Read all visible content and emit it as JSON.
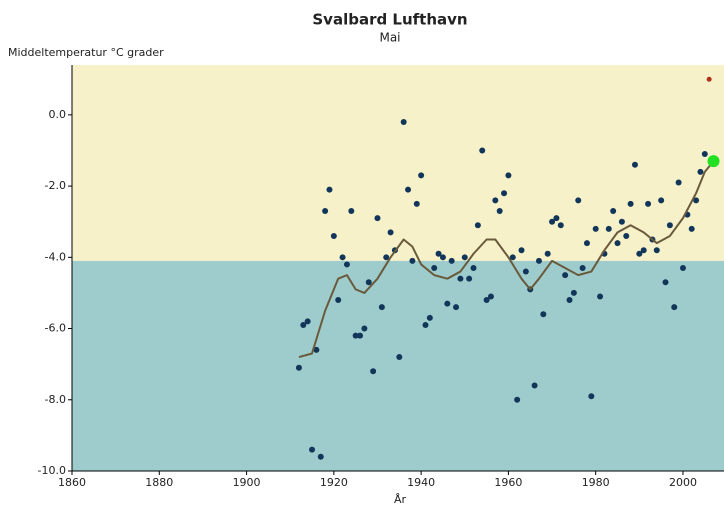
{
  "chart_data": {
    "type": "scatter",
    "title": "Svalbard Lufthavn",
    "subtitle": "Mai",
    "y_label": "Middeltemperatur °C grader",
    "x_label": "År",
    "xlim": [
      1860,
      2009.4
    ],
    "xticks": [
      1860,
      1880,
      1900,
      1920,
      1940,
      1960,
      1980,
      2000
    ],
    "ylim": [
      -10,
      1.4
    ],
    "yticks": [
      {
        "value": 0,
        "label": "0.0"
      },
      {
        "value": -2,
        "label": "-2.0"
      },
      {
        "value": -4,
        "label": "-4.0"
      },
      {
        "value": -6,
        "label": "-6.0"
      },
      {
        "value": -8,
        "label": "-8.0"
      },
      {
        "value": -10,
        "label": "-10.0"
      }
    ],
    "band_threshold": -4.1,
    "band_colors": [
      "#f6f1c9",
      "#9ecccc"
    ],
    "series": [
      {
        "type": "scatter",
        "color": "#12365a",
        "x": [
          1912,
          1913,
          1914,
          1915,
          1916,
          1917,
          1918,
          1919,
          1920,
          1921,
          1922,
          1923,
          1924,
          1925,
          1926,
          1927,
          1928,
          1929,
          1930,
          1931,
          1932,
          1933,
          1934,
          1935,
          1936,
          1937,
          1938,
          1939,
          1940,
          1941,
          1942,
          1943,
          1944,
          1945,
          1946,
          1947,
          1948,
          1949,
          1950,
          1951,
          1952,
          1953,
          1954,
          1955,
          1956,
          1957,
          1958,
          1959,
          1960,
          1961,
          1962,
          1963,
          1964,
          1965,
          1966,
          1967,
          1968,
          1969,
          1970,
          1971,
          1972,
          1973,
          1974,
          1975,
          1976,
          1977,
          1978,
          1979,
          1980,
          1981,
          1982,
          1983,
          1984,
          1985,
          1986,
          1987,
          1988,
          1989,
          1990,
          1991,
          1992,
          1993,
          1994,
          1995,
          1996,
          1997,
          1998,
          1999,
          2000,
          2001,
          2002,
          2003,
          2004,
          2005
        ],
        "values": [
          -7.1,
          -5.9,
          -5.8,
          -9.4,
          -6.6,
          -9.6,
          -2.7,
          -2.1,
          -3.4,
          -5.2,
          -4.0,
          -4.2,
          -2.7,
          -6.2,
          -6.2,
          -6.0,
          -4.7,
          -7.2,
          -2.9,
          -5.4,
          -4.0,
          -3.3,
          -3.8,
          -6.8,
          -0.2,
          -2.1,
          -4.1,
          -2.5,
          -1.7,
          -5.9,
          -5.7,
          -4.3,
          -3.9,
          -4.0,
          -5.3,
          -4.1,
          -5.4,
          -4.6,
          -4.0,
          -4.6,
          -4.3,
          -3.1,
          -1.0,
          -5.2,
          -5.1,
          -2.4,
          -2.7,
          -2.2,
          -1.7,
          -4.0,
          -8.0,
          -3.8,
          -4.4,
          -4.9,
          -7.6,
          -4.1,
          -5.6,
          -3.9,
          -3.0,
          -2.9,
          -3.1,
          -4.5,
          -5.2,
          -5.0,
          -2.4,
          -4.3,
          -3.6,
          -7.9,
          -3.2,
          -5.1,
          -3.9,
          -3.2,
          -2.7,
          -3.6,
          -3.0,
          -3.4,
          -2.5,
          -1.4,
          -3.9,
          -3.8,
          -2.5,
          -3.5,
          -3.8,
          -2.4,
          -4.7,
          -3.1,
          -5.4,
          -1.9,
          -4.3,
          -2.8,
          -3.2,
          -2.4,
          -1.6,
          -1.1
        ]
      },
      {
        "type": "line",
        "color": "#6a5a3c",
        "x": [
          1912,
          1915,
          1918,
          1921,
          1923,
          1925,
          1927,
          1930,
          1933,
          1936,
          1938,
          1940,
          1943,
          1946,
          1949,
          1952,
          1955,
          1957,
          1960,
          1963,
          1965,
          1967,
          1970,
          1973,
          1976,
          1979,
          1982,
          1985,
          1988,
          1991,
          1994,
          1997,
          2000,
          2003,
          2005,
          2007
        ],
        "values": [
          -6.8,
          -6.7,
          -5.5,
          -4.6,
          -4.5,
          -4.9,
          -5.0,
          -4.6,
          -4.0,
          -3.5,
          -3.7,
          -4.2,
          -4.5,
          -4.6,
          -4.4,
          -3.9,
          -3.5,
          -3.5,
          -4.0,
          -4.6,
          -4.9,
          -4.6,
          -4.1,
          -4.3,
          -4.5,
          -4.4,
          -3.8,
          -3.3,
          -3.1,
          -3.3,
          -3.6,
          -3.4,
          -2.9,
          -2.2,
          -1.6,
          -1.3
        ]
      },
      {
        "type": "scatter",
        "color": "#b0301e",
        "size": 2.5,
        "x": [
          2006
        ],
        "values": [
          1.0
        ]
      },
      {
        "type": "scatter",
        "color": "#22e022",
        "size": 6,
        "x": [
          2007
        ],
        "values": [
          -1.3
        ]
      }
    ]
  }
}
